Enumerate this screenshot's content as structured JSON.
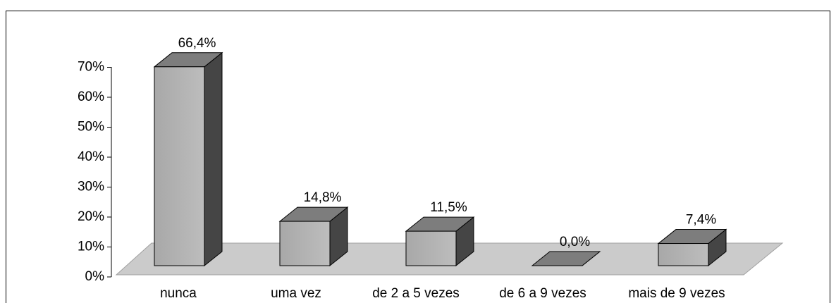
{
  "chart_data": {
    "type": "bar3d",
    "categories": [
      "nunca",
      "uma vez",
      "de 2 a 5 vezes",
      "de 6 a 9 vezes",
      "mais de 9 vezes"
    ],
    "values": [
      66.4,
      14.8,
      11.5,
      0.0,
      7.4
    ],
    "value_labels": [
      "66,4%",
      "14,8%",
      "11,5%",
      "0,0%",
      "7,4%"
    ],
    "color": "#b4b4b4",
    "ylim": [
      0,
      70
    ],
    "yticks": [
      {
        "value": 0,
        "label": "0%"
      },
      {
        "value": 10,
        "label": "10%"
      },
      {
        "value": 20,
        "label": "20%"
      },
      {
        "value": 30,
        "label": "30%"
      },
      {
        "value": 40,
        "label": "40%"
      },
      {
        "value": 50,
        "label": "50%"
      },
      {
        "value": 60,
        "label": "60%"
      },
      {
        "value": 70,
        "label": "70%"
      }
    ]
  }
}
